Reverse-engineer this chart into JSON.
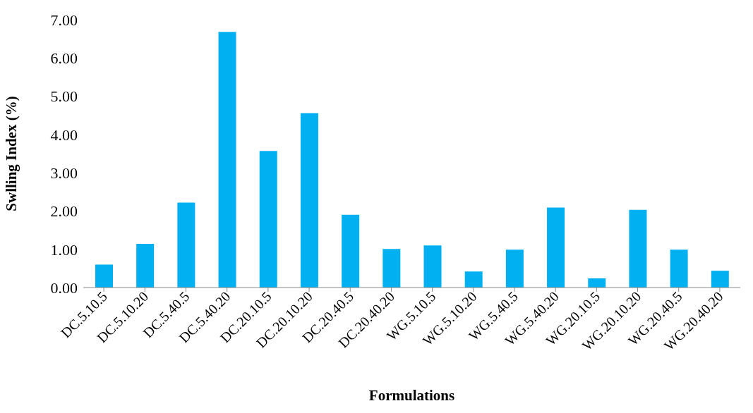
{
  "chart_data": {
    "type": "bar",
    "xlabel": "Formulations",
    "ylabel": "Swlling Index (%)",
    "categories": [
      "DC.5.10.5",
      "DC.5.10.20",
      "DC.5.40.5",
      "DC.5.40.20",
      "DC.20.10.5",
      "DC.20.10.20",
      "DC.20.40.5",
      "DC.20.40.20",
      "WG.5.10.5",
      "WG.5.10.20",
      "WG.5.40.5",
      "WG.5.40.20",
      "WG.20.10.5",
      "WG.20.10.20",
      "WG.20.40.5",
      "WG.20.40.20"
    ],
    "values": [
      0.6,
      1.14,
      2.22,
      6.68,
      3.57,
      4.56,
      1.9,
      1.01,
      1.1,
      0.42,
      0.99,
      2.09,
      0.24,
      2.03,
      0.99,
      0.44
    ],
    "color": "#00b0f0",
    "ylim": [
      0,
      7
    ],
    "yticks": [
      {
        "value": 0,
        "label": "0.00"
      },
      {
        "value": 1,
        "label": "1.00"
      },
      {
        "value": 2,
        "label": "2.00"
      },
      {
        "value": 3,
        "label": "3.00"
      },
      {
        "value": 4,
        "label": "4.00"
      },
      {
        "value": 5,
        "label": "5.00"
      },
      {
        "value": 6,
        "label": "6.00"
      },
      {
        "value": 7,
        "label": "7.00"
      }
    ],
    "grid": false,
    "legend": false
  }
}
